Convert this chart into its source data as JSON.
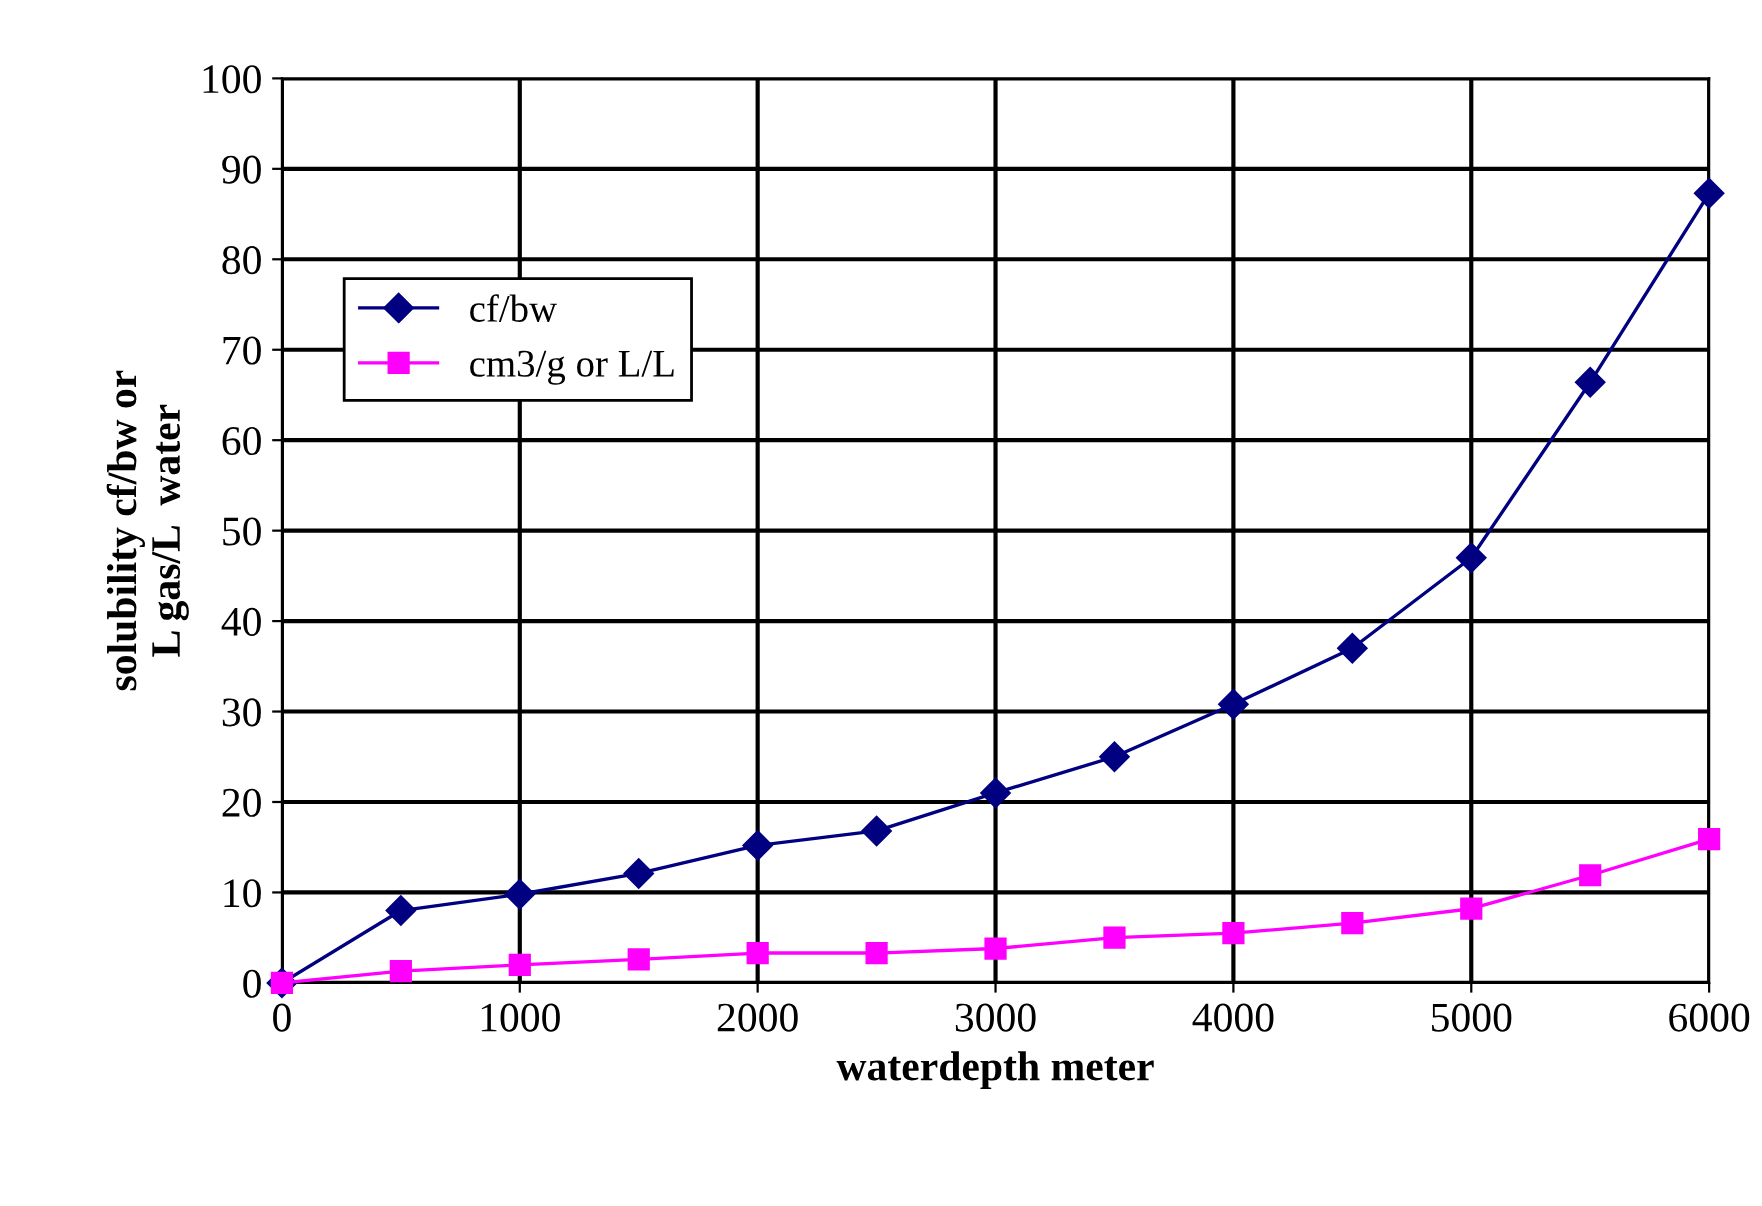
{
  "chart_data": {
    "type": "line",
    "xlabel": "waterdepth meter",
    "ylabel": "solubility cf/bw or\nL gas/L  water",
    "x": [
      0,
      500,
      1000,
      1500,
      2000,
      2500,
      3000,
      3500,
      4000,
      4500,
      5000,
      5500,
      6000
    ],
    "series": [
      {
        "name": "cf/bw",
        "color": "#000080",
        "marker": "diamond",
        "values": [
          0,
          8,
          9.8,
          12.1,
          15.2,
          16.8,
          21,
          25,
          30.8,
          37,
          47,
          66.4,
          87.3
        ]
      },
      {
        "name": "cm3/g or L/L",
        "color": "#ff00ff",
        "marker": "square",
        "values": [
          0,
          1.3,
          2,
          2.6,
          3.3,
          3.3,
          3.8,
          5,
          5.5,
          6.6,
          8.2,
          11.9,
          15.9
        ]
      }
    ],
    "xlim": [
      0,
      6000
    ],
    "xticks": [
      0,
      1000,
      2000,
      3000,
      4000,
      5000,
      6000
    ],
    "ylim": [
      0,
      100
    ],
    "yticks": [
      0,
      10,
      20,
      30,
      40,
      50,
      60,
      70,
      80,
      90,
      100
    ],
    "grid": true,
    "legend": "top left",
    "line_style": "solid"
  }
}
